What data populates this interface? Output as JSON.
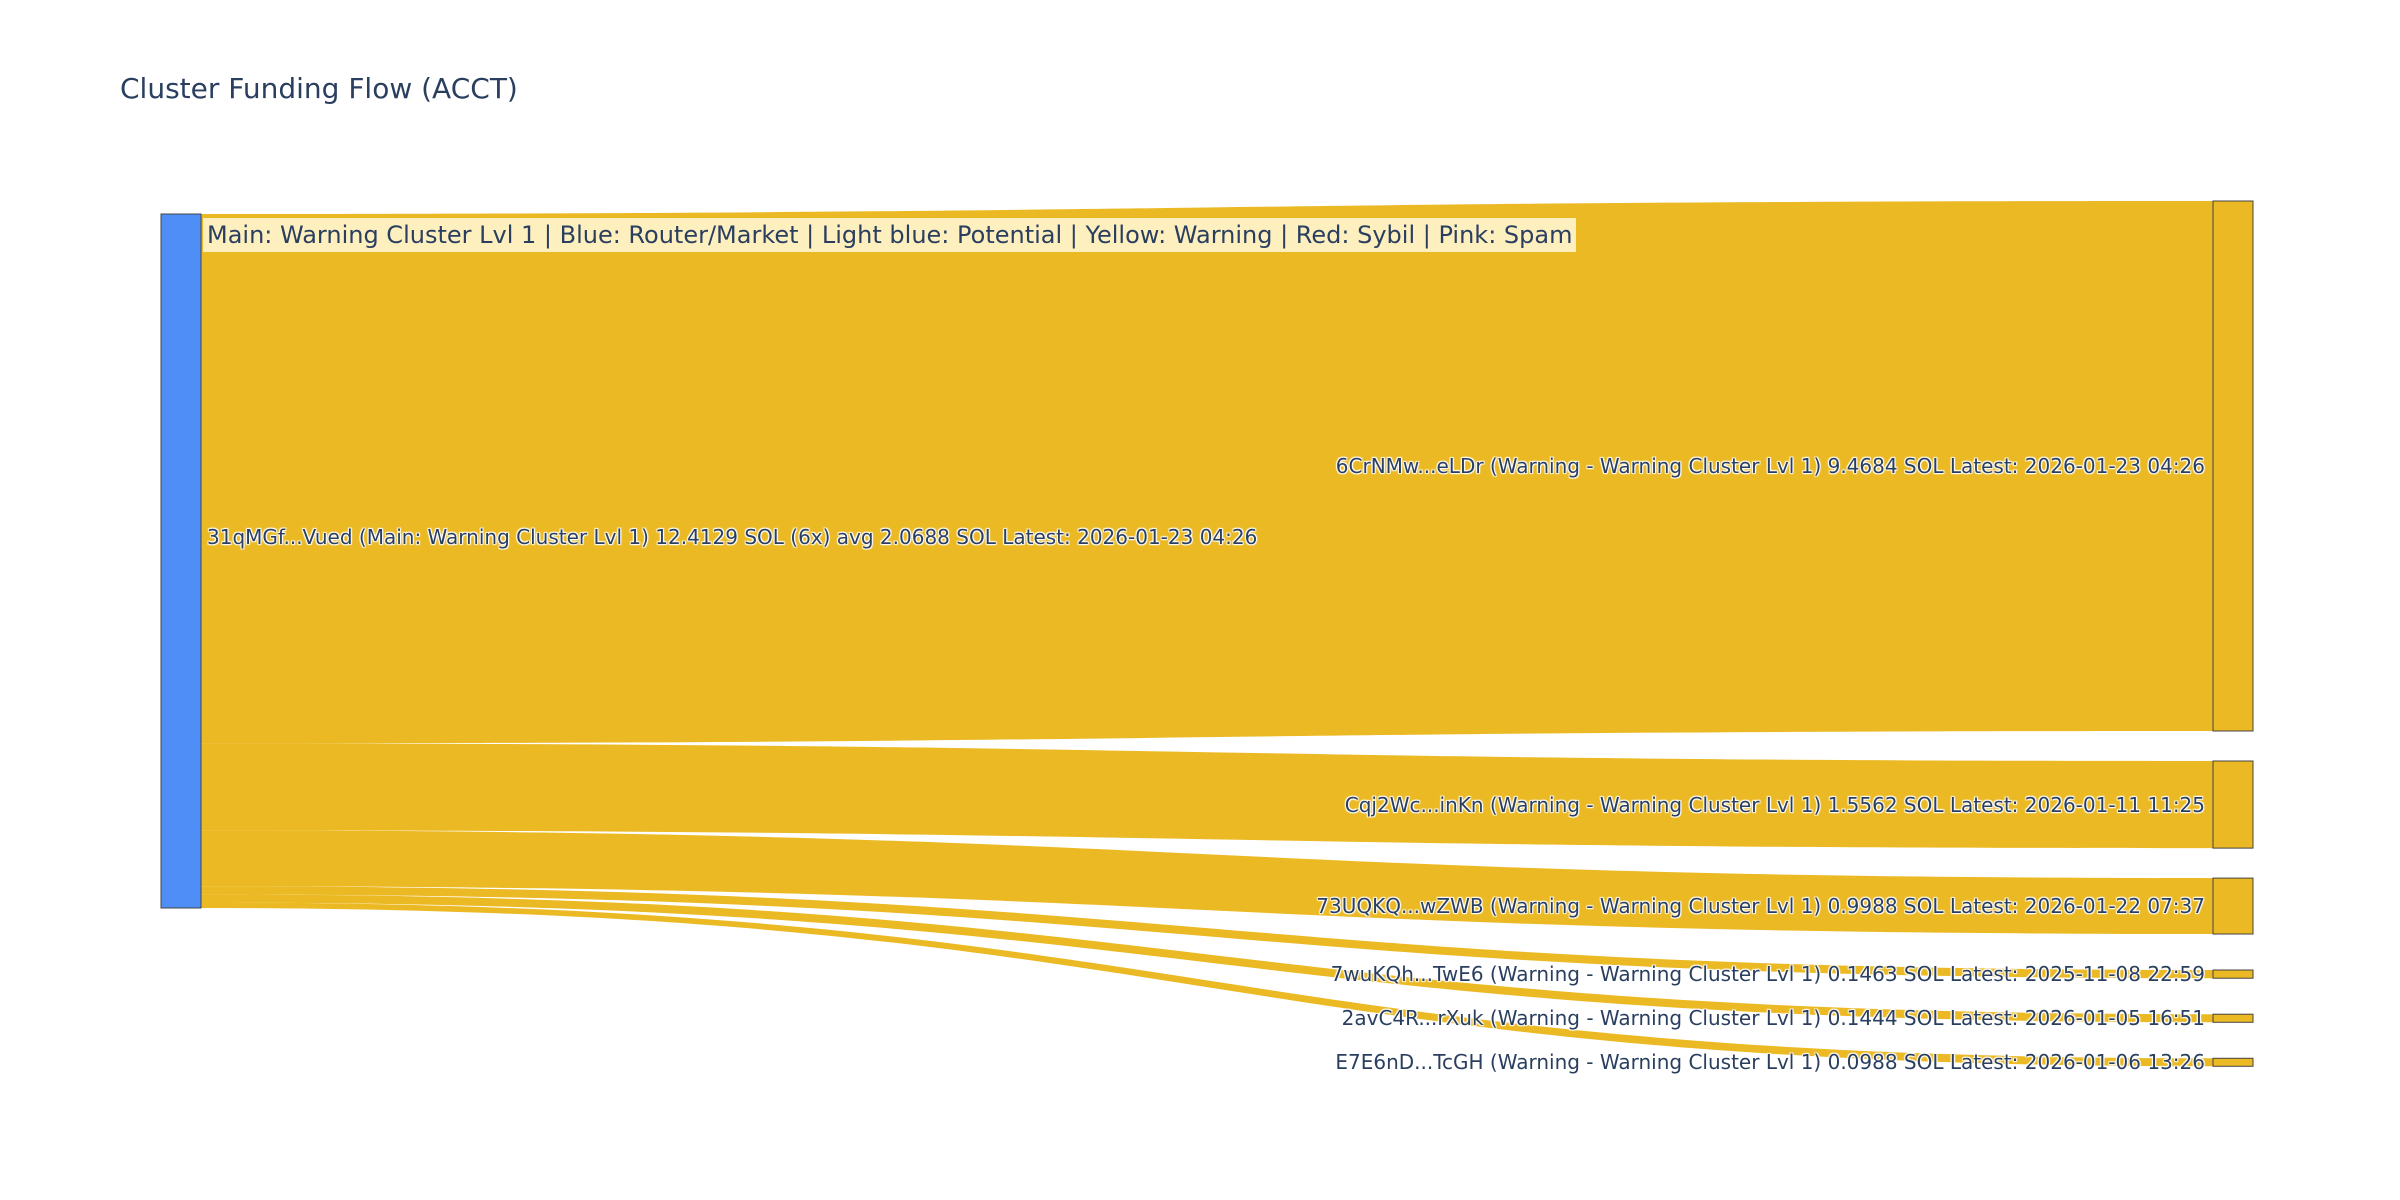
{
  "chart_data": {
    "type": "sankey",
    "title": "Cluster Funding Flow (ACCT)",
    "annotation": "Main: Warning Cluster Lvl 1  |  Blue: Router/Market | Light blue: Potential | Yellow: Warning | Red: Sybil | Pink: Spam",
    "source": {
      "label": "31qMGf...Vued (Main: Warning Cluster Lvl 1) 12.4129 SOL (6x) avg 2.0688 SOL Latest: 2026-01-23 04:26",
      "value": 12.4129,
      "color": "#4f8ef7"
    },
    "link_color": "#ebb923",
    "node_color": "#ebb923",
    "targets": [
      {
        "label": "6CrNMw...eLDr (Warning - Warning Cluster Lvl 1) 9.4684 SOL Latest: 2026-01-23 04:26",
        "value": 9.4684
      },
      {
        "label": "Cqj2Wc...inKn (Warning - Warning Cluster Lvl 1) 1.5562 SOL Latest: 2026-01-11 11:25",
        "value": 1.5562
      },
      {
        "label": "73UQKQ...wZWB (Warning - Warning Cluster Lvl 1) 0.9988 SOL Latest: 2026-01-22 07:37",
        "value": 0.9988
      },
      {
        "label": "7wuKQh...TwE6 (Warning - Warning Cluster Lvl 1) 0.1463 SOL Latest: 2025-11-08 22:59",
        "value": 0.1463
      },
      {
        "label": "2avC4R...rXuk (Warning - Warning Cluster Lvl 1) 0.1444 SOL Latest: 2026-01-05 16:51",
        "value": 0.1444
      },
      {
        "label": "E7E6nD...TcGH (Warning - Warning Cluster Lvl 1) 0.0988 SOL Latest: 2026-01-06 13:26",
        "value": 0.0988
      }
    ]
  }
}
